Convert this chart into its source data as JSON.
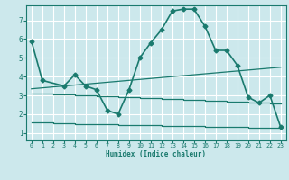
{
  "background_color": "#cce8ec",
  "grid_color": "#ffffff",
  "line_color": "#1a7a6e",
  "xlabel": "Humidex (Indice chaleur)",
  "x_ticks": [
    0,
    1,
    2,
    3,
    4,
    5,
    6,
    7,
    8,
    9,
    10,
    11,
    12,
    13,
    14,
    15,
    16,
    17,
    18,
    19,
    20,
    21,
    22,
    23
  ],
  "ylim": [
    0.6,
    7.8
  ],
  "xlim": [
    -0.5,
    23.5
  ],
  "yticks": [
    1,
    2,
    3,
    4,
    5,
    6,
    7
  ],
  "series_main": {
    "x": [
      0,
      1,
      3,
      4,
      5,
      6,
      7,
      8,
      9,
      10,
      11,
      12,
      13,
      14,
      15,
      16,
      17,
      18,
      19,
      20,
      21,
      22,
      23
    ],
    "y": [
      5.9,
      3.8,
      3.5,
      4.1,
      3.5,
      3.3,
      2.2,
      2.0,
      3.3,
      5.0,
      5.8,
      6.5,
      7.5,
      7.6,
      7.6,
      6.7,
      5.4,
      5.4,
      4.6,
      2.9,
      2.6,
      3.0,
      1.3
    ]
  },
  "series_slope1": {
    "x": [
      0,
      23
    ],
    "y": [
      3.35,
      4.5
    ]
  },
  "series_flat1": {
    "x": [
      0,
      2,
      2,
      4,
      4,
      6,
      6,
      8,
      8,
      10,
      10,
      12,
      12,
      14,
      14,
      16,
      16,
      18,
      18,
      20,
      20,
      22,
      22,
      23
    ],
    "y": [
      3.1,
      3.1,
      3.05,
      3.05,
      3.0,
      3.0,
      2.95,
      2.95,
      2.9,
      2.9,
      2.85,
      2.85,
      2.8,
      2.8,
      2.75,
      2.75,
      2.7,
      2.7,
      2.65,
      2.65,
      2.6,
      2.6,
      2.55,
      2.55
    ]
  },
  "series_flat2": {
    "x": [
      0,
      2,
      2,
      4,
      4,
      6,
      6,
      8,
      8,
      10,
      10,
      12,
      12,
      14,
      14,
      16,
      16,
      18,
      18,
      20,
      20,
      22,
      22,
      23
    ],
    "y": [
      1.55,
      1.55,
      1.5,
      1.5,
      1.48,
      1.48,
      1.45,
      1.45,
      1.42,
      1.42,
      1.4,
      1.4,
      1.38,
      1.38,
      1.35,
      1.35,
      1.32,
      1.32,
      1.3,
      1.3,
      1.28,
      1.28,
      1.25,
      1.25
    ]
  }
}
